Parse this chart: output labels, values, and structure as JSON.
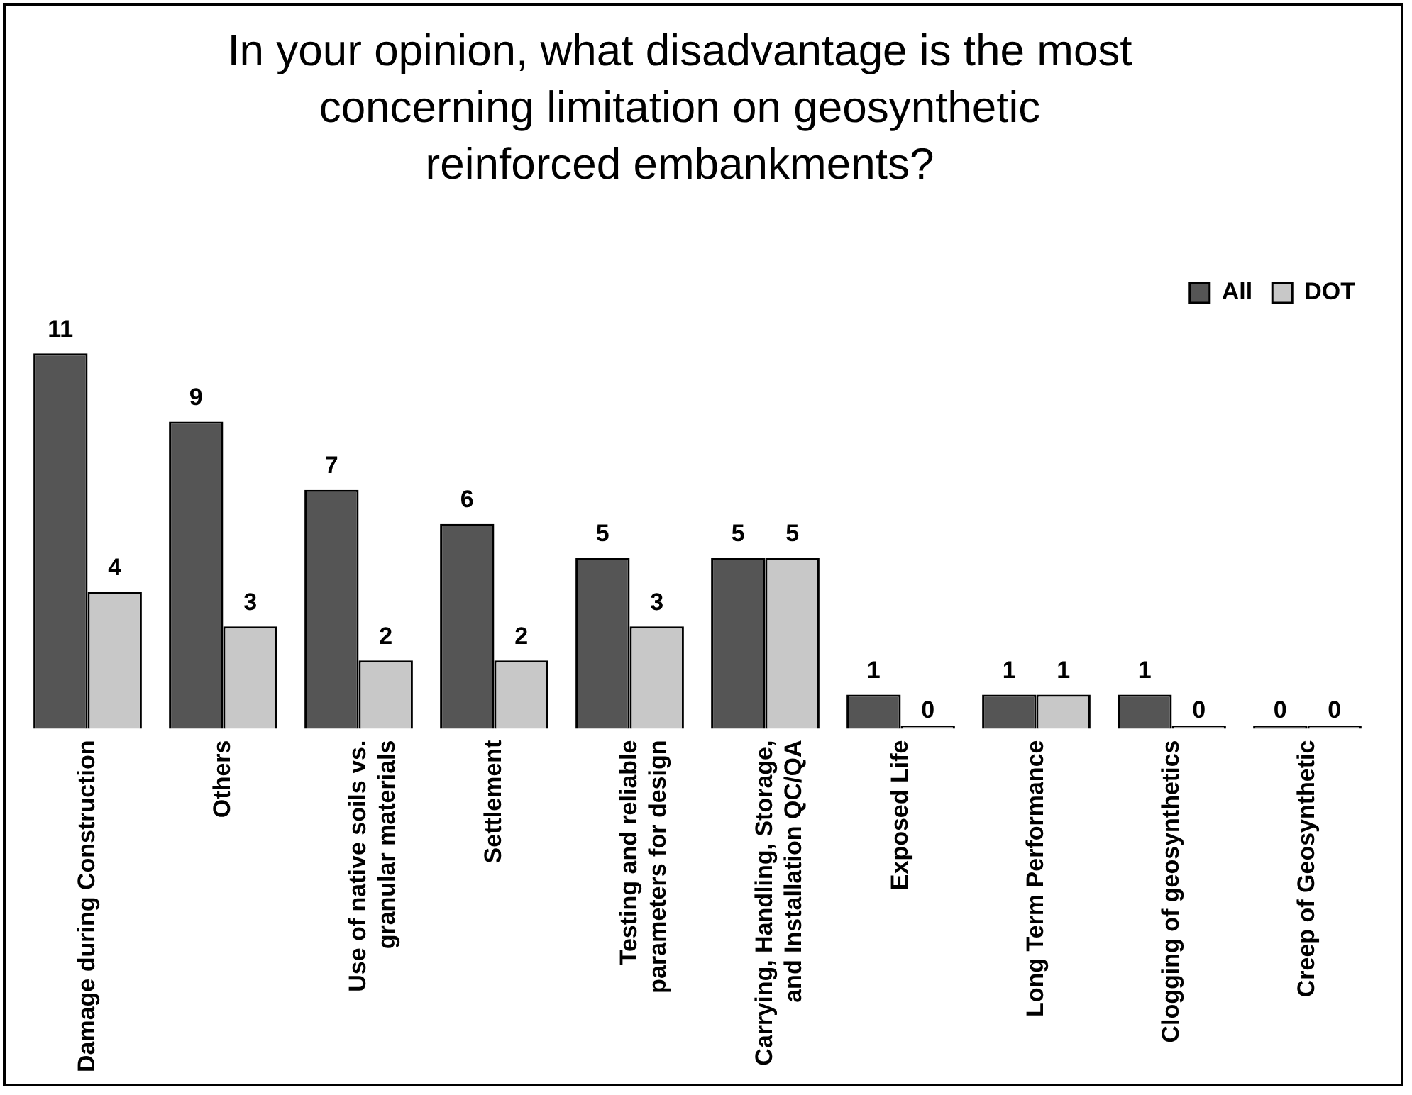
{
  "chart_data": {
    "type": "bar",
    "title": "In your opinion, what disadvantage is the most concerning limitation on geosynthetic reinforced embankments?",
    "categories": [
      "Damage during Construction",
      "Others",
      "Use of native soils vs. granular materials",
      "Settlement",
      "Testing and reliable parameters for design",
      "Carrying, Handling, Storage, and Installation QC/QA",
      "Exposed Life",
      "Long Term Performance",
      "Clogging of geosynthetics",
      "Creep of Geosynthetic"
    ],
    "series": [
      {
        "name": "All",
        "color": "#555555",
        "values": [
          11,
          9,
          7,
          6,
          5,
          5,
          1,
          1,
          1,
          0
        ]
      },
      {
        "name": "DOT",
        "color": "#c8c8c8",
        "values": [
          4,
          3,
          2,
          2,
          3,
          5,
          0,
          1,
          0,
          0
        ]
      }
    ],
    "data_labels": true,
    "legend": "top right",
    "grid": false
  }
}
